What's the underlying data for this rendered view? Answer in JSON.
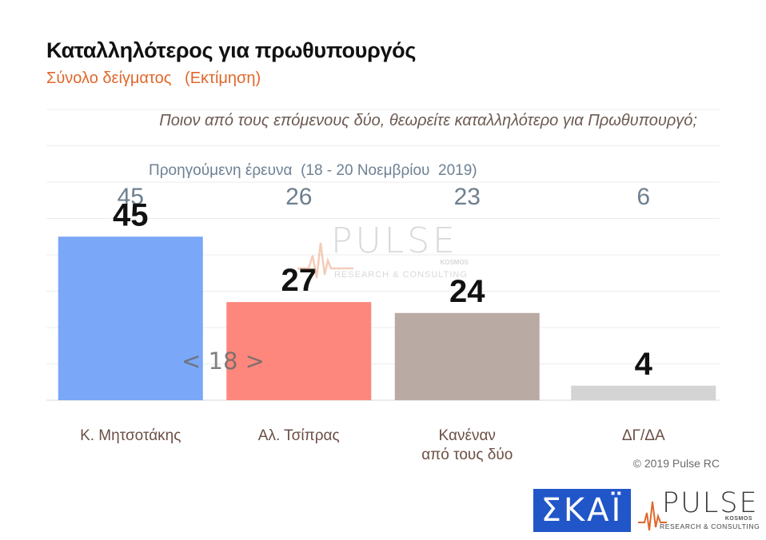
{
  "title": "Καταλληλότερος για πρωθυπουργός",
  "subtitle": "Σύνολο δείγματος   (Εκτίμηση)",
  "question": "Ποιον από τους επόμενους δύο, θεωρείτε καταλληλότερο για Πρωθυπουργό;",
  "previous_survey_label": "Προηγούμενη έρευνα  (18 - 20 Νοεμβρίου  2019)",
  "copyright": "© 2019 Pulse RC",
  "logos": {
    "skai": "ΣΚΑΪ",
    "pulse": "PULSE",
    "pulse_sub": "KOSMOS",
    "pulse_tagline": "RESEARCH & CONSULTING"
  },
  "chart_data": {
    "type": "bar",
    "categories": [
      [
        "Κ. Μητσοτάκης"
      ],
      [
        "Αλ. Τσίπρας"
      ],
      [
        "Κανέναν",
        "από τους δύο"
      ],
      [
        "ΔΓ/ΔΑ"
      ]
    ],
    "values": [
      45,
      27,
      24,
      4
    ],
    "previous_values": [
      45,
      26,
      23,
      6
    ],
    "gap_annotation": "< 18 >",
    "colors": [
      "#7aa7f7",
      "#fd877c",
      "#b9aba4",
      "#d4d4d4"
    ],
    "ylim": [
      0,
      80
    ],
    "grid": true,
    "title": "",
    "xlabel": "",
    "ylabel": ""
  }
}
